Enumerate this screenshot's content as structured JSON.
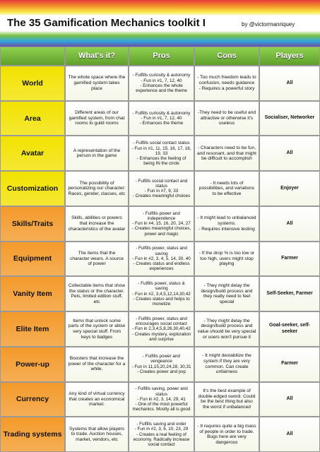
{
  "header": {
    "title": "The 35 Gamification Mechanics toolkit I",
    "author": "by @victormanriquey"
  },
  "table": {
    "columns": [
      "What's it?",
      "Pros",
      "Cons",
      "Players"
    ],
    "rows": [
      {
        "mechanic": "World",
        "color": "#f2e200",
        "what": "The whole space where the gamified system takes place",
        "pros": [
          "- Fulfills curiosity & autonomy",
          "- Fun in #1, 7, 12, 40",
          "- Enhances the whole experience and the theme"
        ],
        "cons": [
          "- Too much freedom leads to confusion, needs guidance",
          "- Requires a powerful story"
        ],
        "players": "All"
      },
      {
        "mechanic": "Area",
        "color": "#f2e200",
        "what": "Different areas of our gamified system, from chat rooms to guild rooms",
        "pros": [
          "- Fulfills curiosity & autonomy",
          "- Fun in #1, 7, 12, 40",
          "- Enhances the theme"
        ],
        "cons": [
          "-They need to be useful and attractive or otherwise it's useless"
        ],
        "players": "Socialiser, Networker"
      },
      {
        "mechanic": "Avatar",
        "color": "#f2e200",
        "what": "A representation of the person in the game",
        "pros": [
          "- Fulfills social contact status",
          "- Fun in #1, 11, 15, 16, 17, 18, 19, 33",
          "- Enhances the feeling of being IN the circle"
        ],
        "cons": [
          "- Characters need to be fun, and resonant, and that might be difficult to accomplish"
        ],
        "players": "All"
      },
      {
        "mechanic": "Customization",
        "color": "#f2e200",
        "what": "The possibility of personalizing our character: Races, gender, classes, etc",
        "pros": [
          "- Fulfills social contact and status",
          "- Fun in #7, 9, 33",
          "- Creates meaningful choices"
        ],
        "cons": [
          "- It needs lots of possibilities, and variations to be effective"
        ],
        "players": "Enjoyer"
      },
      {
        "mechanic": "Skills/Traits",
        "color": "#f39a2a",
        "what": "Skills, abilities or powers that increase the characteristics of the avatar",
        "pros": [
          "- Fulfills power and independence",
          "- Fun in #4, 15, 16, 20, 24, 27",
          "- Creates meaningful choices, power and magic"
        ],
        "cons": [
          "- It might lead to unbalanced systems.",
          "- Requires intensive testing"
        ],
        "players": "All"
      },
      {
        "mechanic": "Equipment",
        "color": "#f39a2a",
        "what": "The items that the character wears. A source of power",
        "pros": [
          "- Fulfills power, status and saving",
          "- Fun in #2, 3, 4, 5, 14, 30, 40",
          "- Creates status and endless experiences"
        ],
        "cons": [
          "- If the drop % is too low or too high, users might stop playing"
        ],
        "players": "Farmer"
      },
      {
        "mechanic": "Vanity Item",
        "color": "#f39a2a",
        "what": "Collectable items that show the status or the character. Pets, limited edition stuff, etc",
        "pros": [
          "- Fulfills power, status & saving",
          "- Fun in #2, 3,4,5,12,14,30,42",
          "- Creates status and helps to monetize"
        ],
        "cons": [
          "- They might delay the design/build process and they really need to feel special"
        ],
        "players": "Self-Seeker, Farmer"
      },
      {
        "mechanic": "Elite Item",
        "color": "#f39a2a",
        "what": "Items that unlock some parts of the system or allow very special stuff. From keys to badges",
        "pros": [
          "- Fulfills power, status and encourages social contact",
          "- Fun in 2,3,4,5,8,26,30,40,42",
          "- Creates mystery, exploration and surprise"
        ],
        "cons": [
          "- They might delay the design/build process and value should be very special or users won't pursue it"
        ],
        "players": "Goal-seeker, self-seeker"
      },
      {
        "mechanic": "Power-up",
        "color": "#f39a2a",
        "what": "Boosters that increase the power of the character for a while.",
        "pros": [
          "- Fulfills power and vengeance",
          "- Fun in 11,15,20,24,28, 30,31",
          "- Creates power and pvp"
        ],
        "cons": [
          "- It might destabilize the system if they are very common. Can create unfairness"
        ],
        "players": "Farmer"
      },
      {
        "mechanic": "Currency",
        "color": "#f39a2a",
        "what": "Any kind of virtual currency that creates an economical market.",
        "pros": [
          "- Fulfills saving, power and status",
          "- Fun in #2, 3, 14, 29, 41",
          "- One of the most powerful mechanics. Mostly all is good"
        ],
        "cons": [
          "It's the best example of double-edged sword. Could be the best thing but also the worst if unbalanced"
        ],
        "players": "All"
      },
      {
        "mechanic": "Trading systems",
        "color": "#f39a2a",
        "what": "Systems that allow players to trade. Auction houses, market, vendors, etc",
        "pros": [
          "- Fulfills saving and order",
          "- Fun in #2, 3, 6, 10, 23, 29",
          "- Creates a real feeling of economy. Radically increase social contact"
        ],
        "cons": [
          "- It requires quite a big mass of people in order to trade. Bugs here are very dangerous"
        ],
        "players": "All"
      }
    ]
  }
}
